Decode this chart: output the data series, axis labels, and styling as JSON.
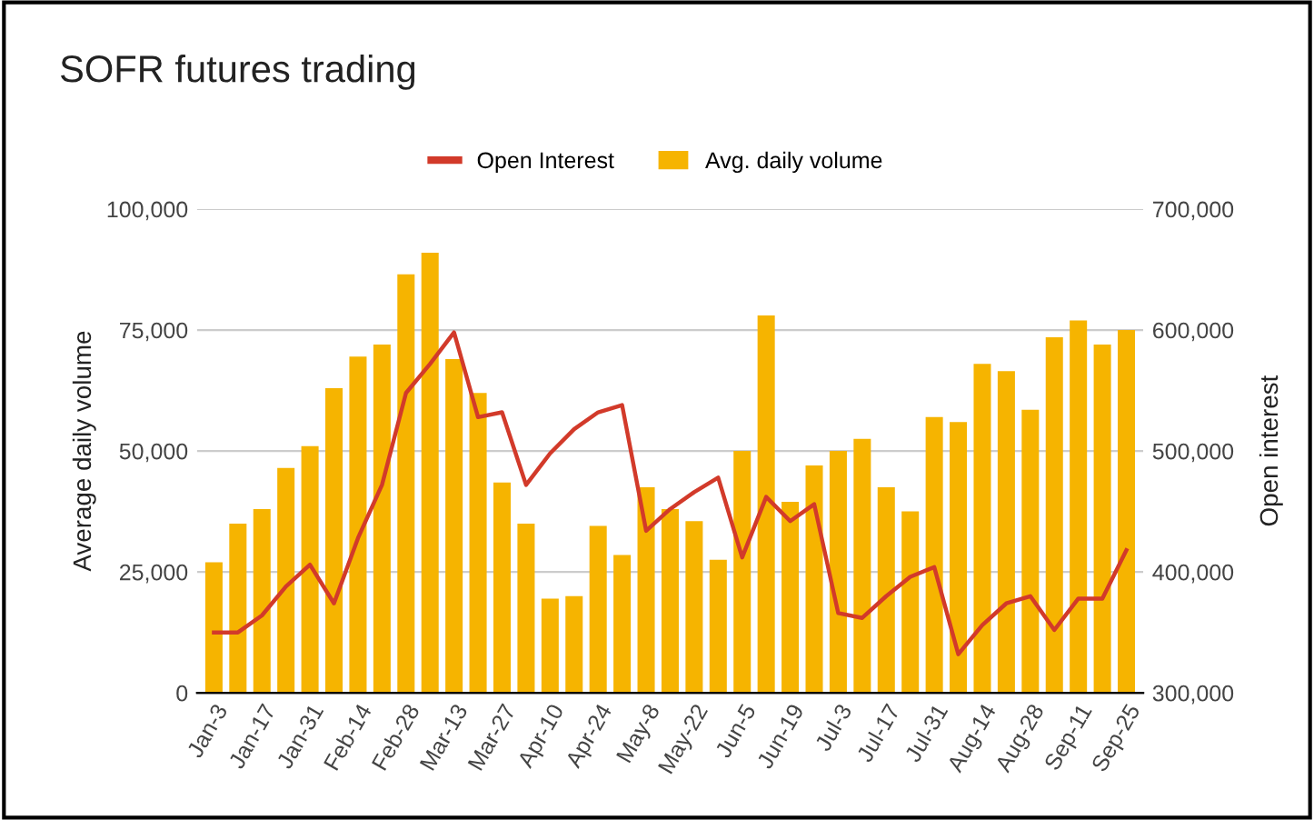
{
  "chart_data": {
    "type": "bar",
    "title": "SOFR futures trading",
    "ylabel": "Average daily volume",
    "y2label": "Open interest",
    "categories": [
      "Jan-3",
      null,
      "Jan-17",
      null,
      "Jan-31",
      null,
      "Feb-14",
      null,
      "Feb-28",
      null,
      "Mar-13",
      null,
      "Mar-27",
      null,
      "Apr-10",
      null,
      "Apr-24",
      null,
      "May-8",
      null,
      "May-22",
      null,
      "Jun-5",
      null,
      "Jun-19",
      null,
      "Jul-3",
      null,
      "Jul-17",
      null,
      "Jul-31",
      null,
      "Aug-14",
      null,
      "Aug-28",
      null,
      "Sep-11",
      null,
      "Sep-25"
    ],
    "series": [
      {
        "name": "Open Interest",
        "type": "line",
        "axis": "y2",
        "color": "#d23a2a",
        "values": [
          350000,
          350000,
          364000,
          388000,
          406000,
          374000,
          428000,
          472000,
          548000,
          572000,
          598000,
          528000,
          532000,
          472000,
          498000,
          518000,
          532000,
          538000,
          434000,
          452000,
          466000,
          478000,
          412000,
          462000,
          442000,
          456000,
          366000,
          362000,
          380000,
          396000,
          404000,
          332000,
          356000,
          374000,
          380000,
          352000,
          378000,
          378000,
          418000
        ]
      },
      {
        "name": "Avg. daily volume",
        "color": "#f6b400",
        "values": [
          27000,
          35000,
          38000,
          46500,
          51000,
          63000,
          69500,
          72000,
          86500,
          91000,
          69000,
          62000,
          43500,
          35000,
          19500,
          20000,
          34500,
          28500,
          42500,
          38000,
          35500,
          27500,
          50000,
          78000,
          39500,
          47000,
          50000,
          52500,
          42500,
          37500,
          57000,
          56000,
          68000,
          66500,
          58500,
          73500,
          77000,
          72000,
          75000
        ]
      }
    ],
    "ylim": [
      0,
      100000
    ],
    "yticks": [
      {
        "value": 0,
        "label": "0"
      },
      {
        "value": 25000,
        "label": "25,000"
      },
      {
        "value": 50000,
        "label": "50,000"
      },
      {
        "value": 75000,
        "label": "75,000"
      },
      {
        "value": 100000,
        "label": "100,000"
      }
    ],
    "y2lim": [
      300000,
      700000
    ],
    "y2ticks": [
      {
        "value": 300000,
        "label": "300,000"
      },
      {
        "value": 400000,
        "label": "400,000"
      },
      {
        "value": 500000,
        "label": "500,000"
      },
      {
        "value": 600000,
        "label": "600,000"
      },
      {
        "value": 700000,
        "label": "700,000"
      }
    ],
    "grid": "y",
    "legend": "top"
  }
}
